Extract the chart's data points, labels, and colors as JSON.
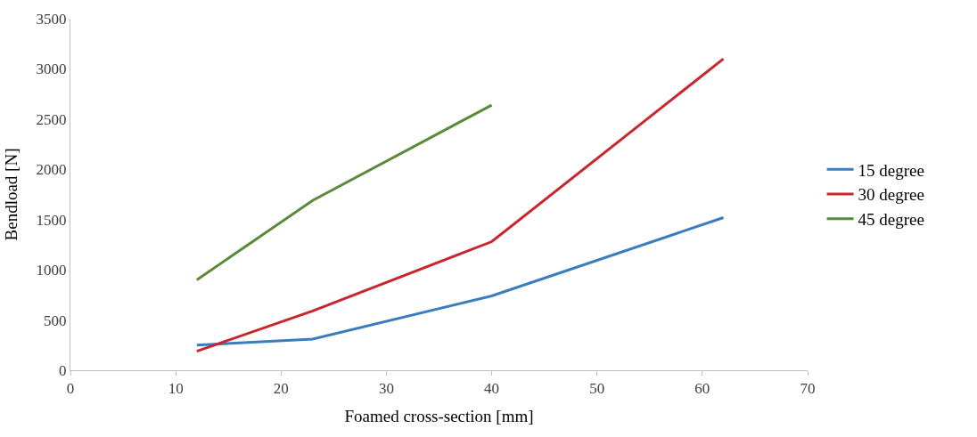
{
  "chart_data": {
    "type": "line",
    "xlabel": "Foamed cross-section [mm]",
    "ylabel": "Bendload [N]",
    "x": [
      12,
      23,
      40,
      62
    ],
    "xlim": [
      0,
      70
    ],
    "xticks": [
      0,
      10,
      20,
      30,
      40,
      50,
      60,
      70
    ],
    "ylim": [
      0,
      3500
    ],
    "yticks": [
      0,
      500,
      1000,
      1500,
      2000,
      2500,
      3000,
      3500
    ],
    "grid": false,
    "legend": "right",
    "marker": "none",
    "line_style": "solid",
    "series": [
      {
        "name": "15 degree",
        "color": "#3a7dbf",
        "values": [
          250,
          310,
          740,
          1520
        ]
      },
      {
        "name": "30 degree",
        "color": "#c8262c",
        "values": [
          190,
          590,
          1280,
          3100
        ]
      },
      {
        "name": "45 degree",
        "color": "#5a8a3a",
        "x": [
          12,
          23,
          40
        ],
        "values": [
          900,
          1690,
          2640
        ]
      }
    ]
  }
}
